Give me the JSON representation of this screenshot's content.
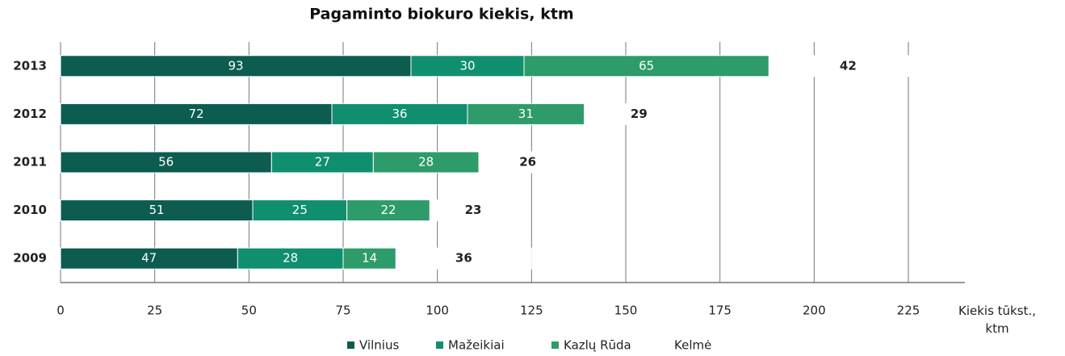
{
  "chart_data": {
    "type": "bar",
    "orientation": "horizontal",
    "stacked": true,
    "title": "Pagaminto biokuro kiekis, ktm",
    "xlabel": "Kiekis tūkst., ktm",
    "categories": [
      "2013",
      "2012",
      "2011",
      "2010",
      "2009"
    ],
    "series": [
      {
        "name": "Vilnius",
        "color": "#0d5c50",
        "values": [
          93,
          72,
          56,
          51,
          47
        ]
      },
      {
        "name": "Mažeikiai",
        "color": "#0f8f6e",
        "values": [
          30,
          36,
          27,
          25,
          28
        ]
      },
      {
        "name": "Kazlų Rūda",
        "color": "#2e9b6a",
        "values": [
          65,
          31,
          28,
          22,
          14
        ]
      },
      {
        "name": "Kelmė",
        "color": "#ffffff",
        "values": [
          42,
          29,
          26,
          23,
          36
        ]
      }
    ],
    "xlim": [
      0,
      240
    ],
    "xticks": [
      0,
      25,
      50,
      75,
      100,
      125,
      150,
      175,
      200,
      225
    ],
    "grid": true,
    "legend": "bottom"
  }
}
